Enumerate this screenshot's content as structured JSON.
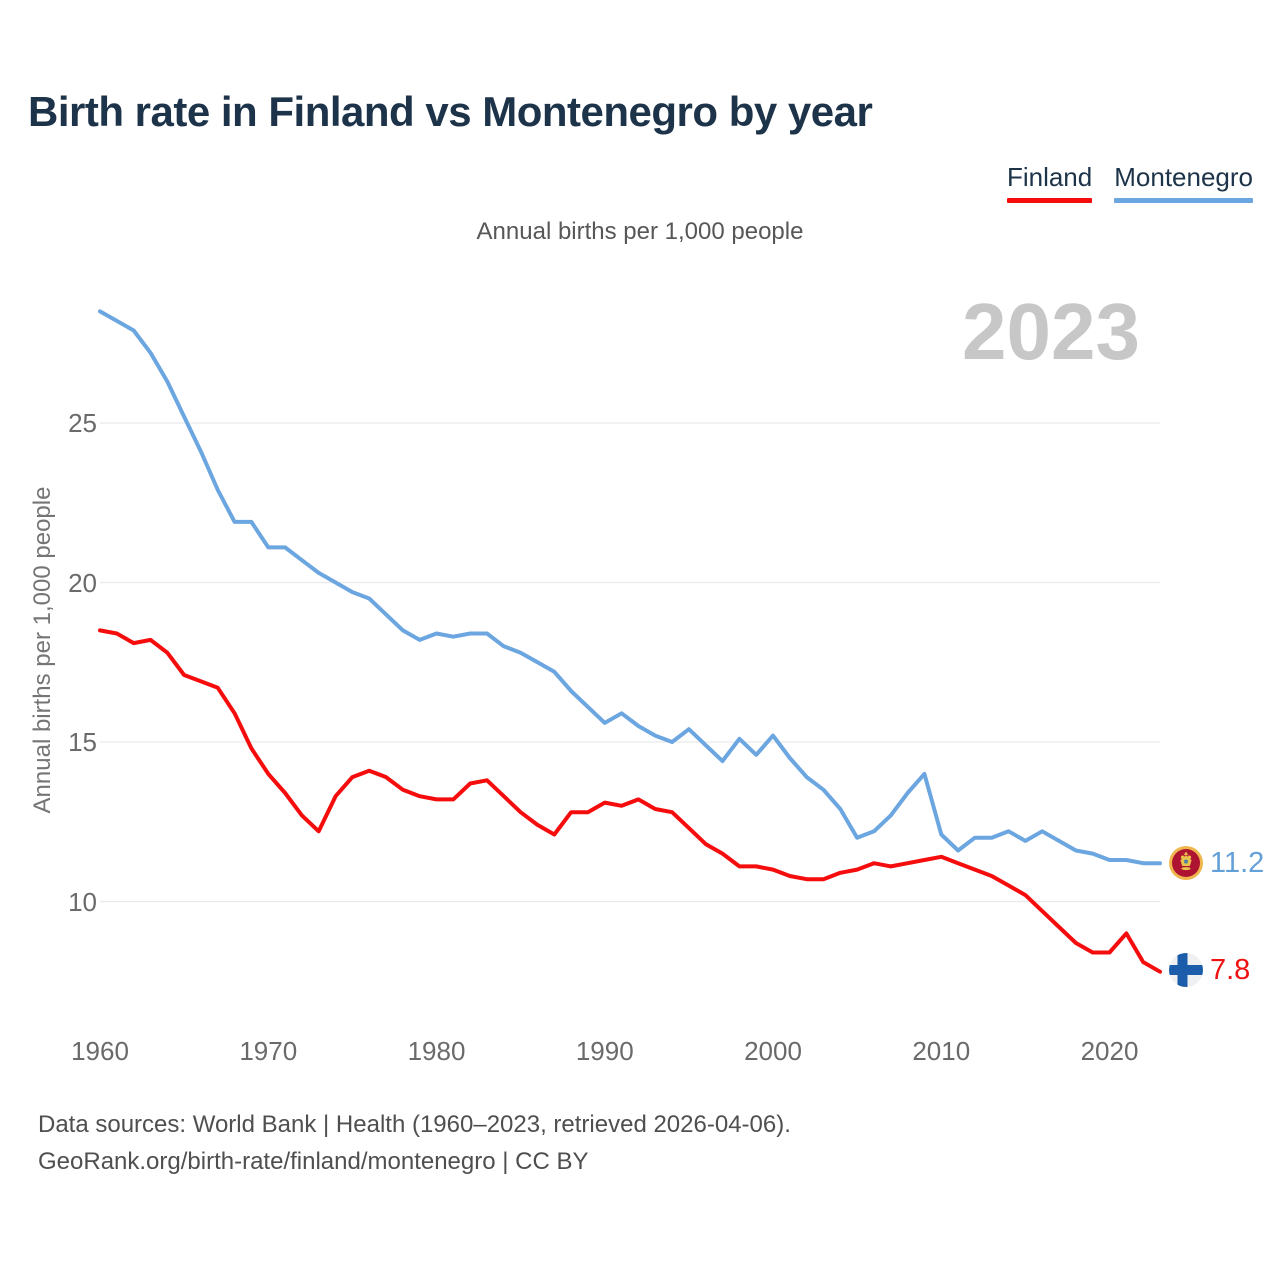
{
  "page": {
    "title": "Birth rate in Finland vs Montenegro by year",
    "subtitle": "Annual births per 1,000 people",
    "watermark": "2023",
    "footer_line1": "Data sources: World Bank | Health (1960–2023, retrieved 2026-04-06).",
    "footer_line2": "GeoRank.org/birth-rate/finland/montenegro | CC BY"
  },
  "legend": {
    "items": [
      {
        "label": "Finland"
      },
      {
        "label": "Montenegro"
      }
    ]
  },
  "end_labels": {
    "montenegro": {
      "value": "11.2",
      "color": "#64a0d8"
    },
    "finland": {
      "value": "7.8",
      "color": "#ef1010"
    }
  },
  "chart_data": {
    "type": "line",
    "title": "Birth rate in Finland vs Montenegro by year",
    "subtitle": "Annual births per 1,000 people",
    "xlabel": "",
    "ylabel": "Annual births per 1,000 people",
    "grid": true,
    "legend_position": "top-right",
    "ylim": [
      7,
      29.5
    ],
    "xlim": [
      1960,
      2023
    ],
    "xticks": [
      1960,
      1970,
      1980,
      1990,
      2000,
      2010,
      2020
    ],
    "yticks": [
      10,
      15,
      20,
      25
    ],
    "x": [
      1960,
      1961,
      1962,
      1963,
      1964,
      1965,
      1966,
      1967,
      1968,
      1969,
      1970,
      1971,
      1972,
      1973,
      1974,
      1975,
      1976,
      1977,
      1978,
      1979,
      1980,
      1981,
      1982,
      1983,
      1984,
      1985,
      1986,
      1987,
      1988,
      1989,
      1990,
      1991,
      1992,
      1993,
      1994,
      1995,
      1996,
      1997,
      1998,
      1999,
      2000,
      2001,
      2002,
      2003,
      2004,
      2005,
      2006,
      2007,
      2008,
      2009,
      2010,
      2011,
      2012,
      2013,
      2014,
      2015,
      2016,
      2017,
      2018,
      2019,
      2020,
      2021,
      2022,
      2023
    ],
    "series": [
      {
        "name": "Finland",
        "color": "#f50d0d",
        "last_value_label": "7.8",
        "values": [
          18.5,
          18.4,
          18.1,
          18.2,
          17.8,
          17.1,
          16.9,
          16.7,
          15.9,
          14.8,
          14.0,
          13.4,
          12.7,
          12.2,
          13.3,
          13.9,
          14.1,
          13.9,
          13.5,
          13.3,
          13.2,
          13.2,
          13.7,
          13.8,
          13.3,
          12.8,
          12.4,
          12.1,
          12.8,
          12.8,
          13.1,
          13.0,
          13.2,
          12.9,
          12.8,
          12.3,
          11.8,
          11.5,
          11.1,
          11.1,
          11.0,
          10.8,
          10.7,
          10.7,
          10.9,
          11.0,
          11.2,
          11.1,
          11.2,
          11.3,
          11.4,
          11.2,
          11.0,
          10.8,
          10.5,
          10.2,
          9.7,
          9.2,
          8.7,
          8.4,
          8.4,
          9.0,
          8.1,
          7.8
        ]
      },
      {
        "name": "Montenegro",
        "color": "#6ca6e0",
        "last_value_label": "11.2",
        "values": [
          28.5,
          28.2,
          27.9,
          27.2,
          26.3,
          25.2,
          24.1,
          22.9,
          21.9,
          21.9,
          21.1,
          21.1,
          20.7,
          20.3,
          20.0,
          19.7,
          19.5,
          19.0,
          18.5,
          18.2,
          18.4,
          18.3,
          18.4,
          18.4,
          18.0,
          17.8,
          17.5,
          17.2,
          16.6,
          16.1,
          15.6,
          15.9,
          15.5,
          15.2,
          15.0,
          15.4,
          14.9,
          14.4,
          15.1,
          14.6,
          15.2,
          14.5,
          13.9,
          13.5,
          12.9,
          12.0,
          12.2,
          12.7,
          13.4,
          14.0,
          12.1,
          11.6,
          12.0,
          12.0,
          12.2,
          11.9,
          12.2,
          11.9,
          11.6,
          11.5,
          11.3,
          11.3,
          11.2,
          11.2
        ]
      }
    ]
  }
}
